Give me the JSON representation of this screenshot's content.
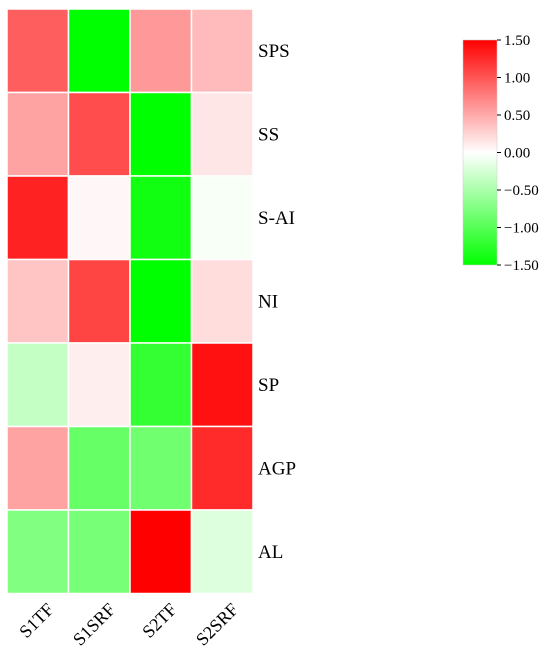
{
  "chart_data": {
    "type": "heatmap",
    "rows": [
      "SPS",
      "SS",
      "S-AI",
      "NI",
      "SP",
      "AGP",
      "AL"
    ],
    "columns": [
      "S1TF",
      "S1SRF",
      "S2TF",
      "S2SRF"
    ],
    "values": [
      [
        0.95,
        -1.5,
        0.6,
        0.4
      ],
      [
        0.55,
        1.05,
        -1.5,
        0.15
      ],
      [
        1.3,
        0.05,
        -1.4,
        -0.05
      ],
      [
        0.35,
        1.1,
        -1.5,
        0.2
      ],
      [
        -0.35,
        0.1,
        -1.2,
        1.4
      ],
      [
        0.55,
        -0.9,
        -0.85,
        1.25
      ],
      [
        -0.75,
        -0.8,
        1.5,
        -0.2
      ]
    ],
    "colorscale": {
      "low": "#00ff00",
      "mid": "#ffffff",
      "high": "#ff0000",
      "range": [
        -1.5,
        1.5
      ],
      "ticks": [
        "1.50",
        "1.00",
        "0.50",
        "0.00",
        "−0.50",
        "−1.00",
        "−1.50"
      ]
    }
  }
}
